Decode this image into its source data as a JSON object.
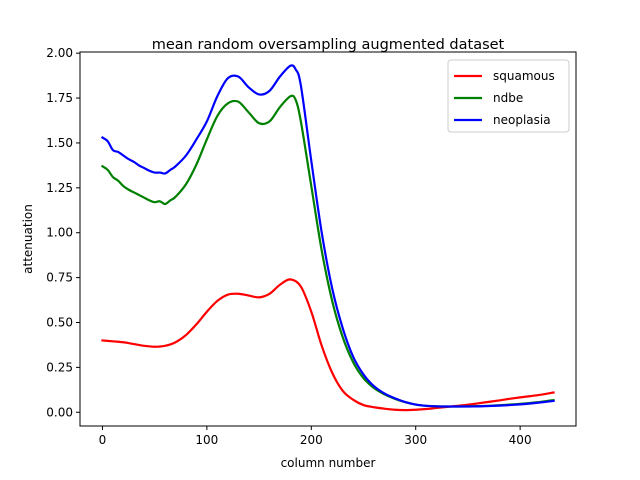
{
  "chart_data": {
    "type": "line",
    "title": "mean random oversampling augmented dataset",
    "xlabel": "column number",
    "ylabel": "attenuation",
    "xlim": [
      -21.5,
      453.5
    ],
    "ylim": [
      -0.0765,
      2.0065
    ],
    "xticks": [
      0,
      100,
      200,
      300,
      400
    ],
    "xtick_labels": [
      "0",
      "100",
      "200",
      "300",
      "400"
    ],
    "yticks": [
      0.0,
      0.25,
      0.5,
      0.75,
      1.0,
      1.25,
      1.5,
      1.75,
      2.0
    ],
    "ytick_labels": [
      "0.00",
      "0.25",
      "0.50",
      "0.75",
      "1.00",
      "1.25",
      "1.50",
      "1.75",
      "2.00"
    ],
    "legend_position": "top-right",
    "series": [
      {
        "name": "squamous",
        "color": "#ff0000",
        "x": [
          0,
          10,
          20,
          30,
          40,
          50,
          60,
          70,
          80,
          90,
          100,
          110,
          120,
          130,
          140,
          150,
          160,
          170,
          180,
          190,
          200,
          210,
          220,
          230,
          240,
          250,
          260,
          270,
          280,
          290,
          300,
          310,
          320,
          330,
          340,
          350,
          360,
          370,
          380,
          390,
          400,
          410,
          420,
          432
        ],
        "y": [
          0.4,
          0.395,
          0.39,
          0.38,
          0.37,
          0.365,
          0.37,
          0.39,
          0.43,
          0.49,
          0.56,
          0.62,
          0.655,
          0.66,
          0.65,
          0.64,
          0.66,
          0.71,
          0.74,
          0.7,
          0.56,
          0.37,
          0.22,
          0.12,
          0.07,
          0.04,
          0.028,
          0.02,
          0.014,
          0.012,
          0.014,
          0.018,
          0.024,
          0.03,
          0.036,
          0.042,
          0.05,
          0.058,
          0.066,
          0.075,
          0.083,
          0.09,
          0.098,
          0.11
        ]
      },
      {
        "name": "ndbe",
        "color": "#008000",
        "x": [
          0,
          5,
          10,
          15,
          20,
          25,
          30,
          35,
          40,
          45,
          50,
          55,
          60,
          65,
          70,
          80,
          90,
          100,
          110,
          120,
          130,
          140,
          150,
          160,
          170,
          180,
          185,
          190,
          200,
          210,
          220,
          230,
          240,
          250,
          260,
          270,
          280,
          290,
          300,
          310,
          320,
          330,
          340,
          350,
          360,
          370,
          380,
          390,
          400,
          410,
          420,
          432
        ],
        "y": [
          1.37,
          1.35,
          1.31,
          1.29,
          1.26,
          1.24,
          1.225,
          1.21,
          1.195,
          1.18,
          1.17,
          1.175,
          1.16,
          1.18,
          1.2,
          1.27,
          1.38,
          1.52,
          1.65,
          1.72,
          1.73,
          1.67,
          1.61,
          1.62,
          1.7,
          1.76,
          1.74,
          1.62,
          1.26,
          0.9,
          0.62,
          0.42,
          0.28,
          0.19,
          0.135,
          0.1,
          0.075,
          0.056,
          0.043,
          0.036,
          0.033,
          0.032,
          0.032,
          0.033,
          0.034,
          0.036,
          0.039,
          0.043,
          0.047,
          0.052,
          0.058,
          0.068
        ]
      },
      {
        "name": "neoplasia",
        "color": "#0000ff",
        "x": [
          0,
          5,
          10,
          15,
          20,
          25,
          30,
          35,
          40,
          45,
          50,
          55,
          60,
          65,
          70,
          80,
          90,
          100,
          110,
          120,
          130,
          140,
          150,
          160,
          170,
          180,
          185,
          190,
          200,
          210,
          220,
          230,
          240,
          250,
          260,
          270,
          280,
          290,
          300,
          310,
          320,
          330,
          340,
          350,
          360,
          370,
          380,
          390,
          400,
          410,
          420,
          432
        ],
        "y": [
          1.53,
          1.51,
          1.46,
          1.45,
          1.43,
          1.41,
          1.395,
          1.375,
          1.36,
          1.345,
          1.335,
          1.335,
          1.33,
          1.35,
          1.37,
          1.43,
          1.52,
          1.62,
          1.76,
          1.86,
          1.87,
          1.81,
          1.77,
          1.79,
          1.87,
          1.93,
          1.91,
          1.82,
          1.4,
          1.0,
          0.69,
          0.47,
          0.31,
          0.21,
          0.145,
          0.105,
          0.078,
          0.057,
          0.043,
          0.036,
          0.033,
          0.032,
          0.032,
          0.032,
          0.033,
          0.035,
          0.037,
          0.04,
          0.044,
          0.049,
          0.055,
          0.063
        ]
      }
    ]
  }
}
